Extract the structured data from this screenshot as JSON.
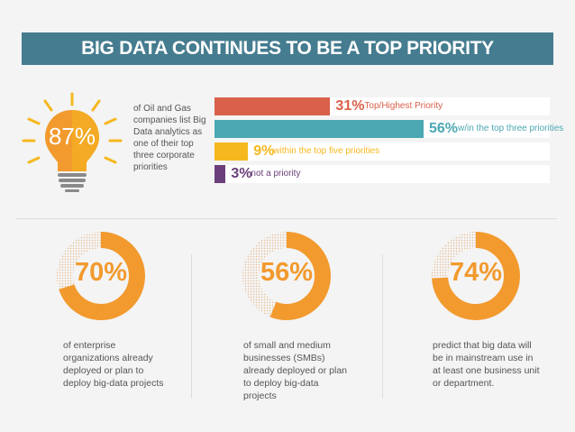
{
  "title": "BIG DATA CONTINUES TO BE A TOP PRIORITY",
  "colors": {
    "banner": "#457c8f",
    "orange": "#f29a2e",
    "red": "#d9604a",
    "teal": "#4ba8b3",
    "yellow": "#f5b81e",
    "purple": "#6b3f7a",
    "text": "#555555"
  },
  "bulb": {
    "icon": "lightbulb-icon",
    "value": "87%",
    "text": "of Oil and Gas companies list Big Data analytics as one of their top three corporate priorities"
  },
  "chart_data": [
    {
      "type": "bar",
      "orientation": "horizontal",
      "unit": "%",
      "categories": [
        "Top/Highest Priority",
        "w/in the top three priorities",
        "within the top five priorities",
        "not a priority"
      ],
      "values": [
        31,
        56,
        9,
        3
      ],
      "value_labels": [
        "31%",
        "56%",
        "9%",
        "3%"
      ],
      "colors": [
        "#d9604a",
        "#4ba8b3",
        "#f5b81e",
        "#6b3f7a"
      ]
    },
    {
      "type": "pie",
      "style": "donut",
      "items": [
        {
          "value": 70,
          "label": "70%",
          "text": "of enterprise organizations already deployed or plan to deploy big-data projects"
        },
        {
          "value": 56,
          "label": "56%",
          "text": "of small and medium businesses (SMBs) already deployed or plan to deploy big-data projects"
        },
        {
          "value": 74,
          "label": "74%",
          "text": "predict that big data will be in mainstream use in at least one business unit or department."
        }
      ]
    }
  ]
}
